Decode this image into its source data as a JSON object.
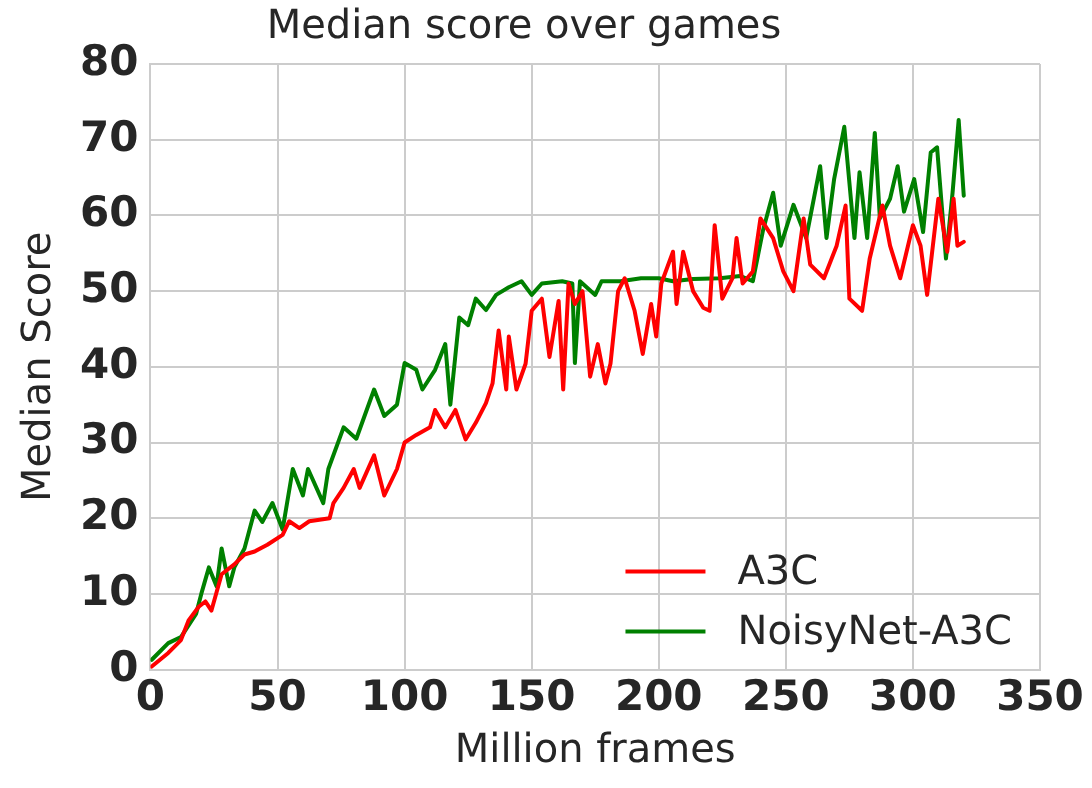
{
  "chart_data": {
    "type": "line",
    "title": "Median score over games",
    "xlabel": "Million frames",
    "ylabel": "Median Score",
    "xlim": [
      0,
      350
    ],
    "xticks": [
      0,
      50,
      100,
      150,
      200,
      250,
      300,
      350
    ],
    "ylim": [
      0,
      80
    ],
    "yticks": [
      0,
      10,
      20,
      30,
      40,
      50,
      60,
      70,
      80
    ],
    "grid": true,
    "legend": "bottom right",
    "marker": "none",
    "line_style": "solid",
    "series": [
      {
        "name": "A3C",
        "color": "#ff0000",
        "x": [
          0.5,
          7,
          12,
          15,
          19,
          21.6,
          24,
          28,
          33,
          37,
          41,
          46,
          52,
          54.6,
          58.6,
          62.5,
          70.5,
          72,
          76,
          80,
          82.3,
          88,
          92,
          97,
          100,
          104.6,
          110,
          112,
          116,
          120,
          124,
          128,
          132,
          134.6,
          137,
          140,
          141,
          144,
          147.6,
          150,
          154,
          157,
          160.6,
          162.4,
          164.5,
          167,
          170,
          173,
          176,
          179,
          181,
          184,
          186.6,
          190.5,
          193.7,
          197,
          199,
          201,
          205.6,
          207,
          209.6,
          213.5,
          217.5,
          220,
          222,
          225,
          229,
          230.6,
          233,
          237,
          240,
          245,
          249,
          253,
          257,
          259.6,
          265,
          270,
          273.5,
          275,
          280,
          283,
          288,
          291,
          295,
          300,
          303,
          305.6,
          310,
          313.5,
          316,
          317.5,
          320
        ],
        "values": [
          0.4,
          2.2,
          3.9,
          6.5,
          8.3,
          9,
          7.8,
          12.6,
          13.9,
          15.2,
          15.6,
          16.5,
          17.8,
          19.6,
          18.7,
          19.6,
          20,
          22,
          24,
          26.5,
          24,
          28.3,
          23,
          26.5,
          30,
          31,
          32,
          34.3,
          32,
          34.3,
          30.4,
          32.6,
          35.2,
          37.8,
          44.8,
          37,
          44,
          37,
          40.4,
          47.4,
          49,
          41.3,
          48.7,
          37,
          51,
          48.3,
          50,
          38.7,
          43,
          37.8,
          40.4,
          50,
          51.7,
          47.4,
          41.7,
          48.3,
          44,
          51,
          55.2,
          48.3,
          55.2,
          50,
          47.8,
          47.4,
          58.7,
          49,
          51.7,
          57,
          51,
          52.6,
          59.6,
          57,
          52.6,
          50,
          59.6,
          53.5,
          51.7,
          56,
          61.3,
          49,
          47.4,
          54.3,
          61.3,
          56,
          51.7,
          58.7,
          56,
          49.5,
          62.2,
          55.2,
          62.2,
          56,
          56.5
        ]
      },
      {
        "name": "NoisyNet-A3C",
        "color": "#008000",
        "x": [
          0.5,
          7,
          12,
          18,
          20,
          23,
          26,
          28,
          31,
          33,
          37,
          41,
          44,
          48,
          52,
          56,
          60,
          62,
          68,
          70,
          76,
          81,
          88,
          92,
          97,
          100,
          104.6,
          107,
          112,
          116,
          118,
          121.5,
          125,
          128,
          132,
          136,
          141,
          146,
          150,
          154,
          162,
          166,
          167,
          169,
          175,
          177.5,
          185,
          193,
          200,
          205.6,
          213.5,
          224,
          232,
          237,
          241,
          245,
          248,
          253,
          258,
          263.5,
          266,
          269,
          273,
          277,
          279,
          282,
          285,
          287,
          291,
          294,
          296.5,
          300.5,
          304,
          307,
          309.5,
          313,
          315.6,
          318,
          320
        ],
        "values": [
          1.3,
          3.5,
          4.3,
          7.4,
          10,
          13.5,
          11,
          16,
          11,
          13.5,
          16,
          21,
          19.5,
          22,
          18.5,
          26.5,
          23,
          26.5,
          22,
          26.5,
          32,
          30.5,
          37,
          33.5,
          35,
          40.5,
          39.6,
          37,
          39.6,
          43,
          35,
          46.5,
          45.5,
          49,
          47.5,
          49.5,
          50.5,
          51.3,
          49.5,
          51,
          51.3,
          51,
          40.5,
          51.3,
          49.5,
          51.3,
          51.3,
          51.7,
          51.7,
          51.3,
          51.6,
          51.7,
          52,
          51.3,
          58,
          63,
          56,
          61.4,
          57,
          66.5,
          57,
          64.8,
          71.7,
          57,
          65.7,
          57,
          70.9,
          59.6,
          62.2,
          66.5,
          60.5,
          64.8,
          57.8,
          68.3,
          69,
          54.3,
          63,
          72.6,
          62.6
        ]
      }
    ]
  }
}
